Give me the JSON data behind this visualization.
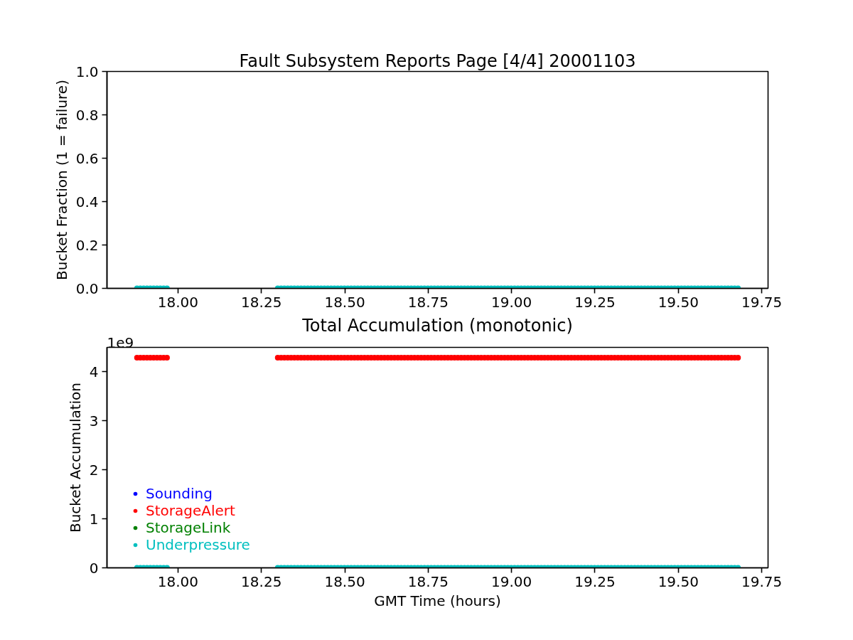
{
  "chart_data": [
    {
      "type": "scatter",
      "title": "Fault Subsystem Reports Page [4/4] 20001103",
      "ylabel": "Bucket Fraction (1 = failure)",
      "marker": "circle",
      "xlim": [
        17.787,
        19.769
      ],
      "xticks": [
        {
          "value": 18,
          "label": "18.00"
        },
        18.25,
        {
          "value": 18.5,
          "label": "18.50"
        },
        18.75,
        {
          "value": 19,
          "label": "19.00"
        },
        19.25,
        {
          "value": 19.5,
          "label": "19.50"
        },
        19.75
      ],
      "ylim": [
        0,
        1
      ],
      "yticks": [
        {
          "value": 0,
          "label": "0.0"
        },
        0.2,
        0.4,
        0.6,
        0.8,
        {
          "value": 1,
          "label": "1.0"
        }
      ],
      "x": [
        17.877,
        17.887,
        17.897,
        17.907,
        17.917,
        17.927,
        17.937,
        17.947,
        17.957,
        17.967,
        18.299,
        18.309,
        18.319,
        18.329,
        18.339,
        18.349,
        18.359,
        18.369,
        18.379,
        18.389,
        18.399,
        18.409,
        18.419,
        18.429,
        18.439,
        18.449,
        18.459,
        18.469,
        18.479,
        18.489,
        18.499,
        18.509,
        18.519,
        18.529,
        18.539,
        18.549,
        18.559,
        18.569,
        18.579,
        18.589,
        18.599,
        18.609,
        18.619,
        18.629,
        18.639,
        18.649,
        18.659,
        18.669,
        18.679,
        18.689,
        18.699,
        18.709,
        18.719,
        18.729,
        18.739,
        18.749,
        18.759,
        18.769,
        18.779,
        18.789,
        18.799,
        18.809,
        18.819,
        18.829,
        18.839,
        18.849,
        18.859,
        18.869,
        18.879,
        18.889,
        18.899,
        18.909,
        18.919,
        18.929,
        18.939,
        18.949,
        18.959,
        18.969,
        18.979,
        18.989,
        18.999,
        19.009,
        19.019,
        19.029,
        19.039,
        19.049,
        19.059,
        19.069,
        19.079,
        19.089,
        19.099,
        19.109,
        19.119,
        19.129,
        19.139,
        19.149,
        19.159,
        19.169,
        19.179,
        19.189,
        19.199,
        19.209,
        19.219,
        19.229,
        19.239,
        19.249,
        19.259,
        19.269,
        19.279,
        19.289,
        19.299,
        19.309,
        19.319,
        19.329,
        19.339,
        19.349,
        19.359,
        19.369,
        19.379,
        19.389,
        19.399,
        19.409,
        19.419,
        19.429,
        19.439,
        19.449,
        19.459,
        19.469,
        19.479,
        19.489,
        19.499,
        19.509,
        19.519,
        19.529,
        19.539,
        19.549,
        19.559,
        19.569,
        19.579,
        19.589,
        19.599,
        19.609,
        19.619,
        19.629,
        19.639,
        19.649,
        19.659,
        19.669,
        19.679
      ],
      "series": [
        {
          "color": "#00bfbf",
          "values": [
            0,
            0,
            0,
            0,
            0,
            0,
            0,
            0,
            0,
            0,
            0,
            0,
            0,
            0,
            0,
            0,
            0,
            0,
            0,
            0,
            0,
            0,
            0,
            0,
            0,
            0,
            0,
            0,
            0,
            0,
            0,
            0,
            0,
            0,
            0,
            0,
            0,
            0,
            0,
            0,
            0,
            0,
            0,
            0,
            0,
            0,
            0,
            0,
            0,
            0,
            0,
            0,
            0,
            0,
            0,
            0,
            0,
            0,
            0,
            0,
            0,
            0,
            0,
            0,
            0,
            0,
            0,
            0,
            0,
            0,
            0,
            0,
            0,
            0,
            0,
            0,
            0,
            0,
            0,
            0,
            0,
            0,
            0,
            0,
            0,
            0,
            0,
            0,
            0,
            0,
            0,
            0,
            0,
            0,
            0,
            0,
            0,
            0,
            0,
            0,
            0,
            0,
            0,
            0,
            0,
            0,
            0,
            0,
            0,
            0,
            0,
            0,
            0,
            0,
            0,
            0,
            0,
            0,
            0,
            0,
            0,
            0,
            0,
            0,
            0,
            0,
            0,
            0,
            0,
            0,
            0,
            0,
            0,
            0,
            0,
            0,
            0,
            0,
            0,
            0,
            0,
            0,
            0,
            0,
            0,
            0,
            0,
            0,
            0
          ]
        }
      ]
    },
    {
      "type": "scatter",
      "title": "Total Accumulation (monotonic)",
      "xlabel": "GMT Time (hours)",
      "ylabel": "Bucket Accumulation",
      "marker": "circle",
      "legend": "bottom left",
      "annotations": [
        "1e9"
      ],
      "xlim": [
        17.787,
        19.769
      ],
      "xticks": [
        {
          "value": 18,
          "label": "18.00"
        },
        18.25,
        {
          "value": 18.5,
          "label": "18.50"
        },
        18.75,
        {
          "value": 19,
          "label": "19.00"
        },
        19.25,
        {
          "value": 19.5,
          "label": "19.50"
        },
        19.75
      ],
      "ylim": [
        0,
        4.5
      ],
      "yticks": [
        0,
        1,
        2,
        3,
        4
      ],
      "x": [
        17.877,
        17.887,
        17.897,
        17.907,
        17.917,
        17.927,
        17.937,
        17.947,
        17.957,
        17.967,
        18.299,
        18.309,
        18.319,
        18.329,
        18.339,
        18.349,
        18.359,
        18.369,
        18.379,
        18.389,
        18.399,
        18.409,
        18.419,
        18.429,
        18.439,
        18.449,
        18.459,
        18.469,
        18.479,
        18.489,
        18.499,
        18.509,
        18.519,
        18.529,
        18.539,
        18.549,
        18.559,
        18.569,
        18.579,
        18.589,
        18.599,
        18.609,
        18.619,
        18.629,
        18.639,
        18.649,
        18.659,
        18.669,
        18.679,
        18.689,
        18.699,
        18.709,
        18.719,
        18.729,
        18.739,
        18.749,
        18.759,
        18.769,
        18.779,
        18.789,
        18.799,
        18.809,
        18.819,
        18.829,
        18.839,
        18.849,
        18.859,
        18.869,
        18.879,
        18.889,
        18.899,
        18.909,
        18.919,
        18.929,
        18.939,
        18.949,
        18.959,
        18.969,
        18.979,
        18.989,
        18.999,
        19.009,
        19.019,
        19.029,
        19.039,
        19.049,
        19.059,
        19.069,
        19.079,
        19.089,
        19.099,
        19.109,
        19.119,
        19.129,
        19.139,
        19.149,
        19.159,
        19.169,
        19.179,
        19.189,
        19.199,
        19.209,
        19.219,
        19.229,
        19.239,
        19.249,
        19.259,
        19.269,
        19.279,
        19.289,
        19.299,
        19.309,
        19.319,
        19.329,
        19.339,
        19.349,
        19.359,
        19.369,
        19.379,
        19.389,
        19.399,
        19.409,
        19.419,
        19.429,
        19.439,
        19.449,
        19.459,
        19.469,
        19.479,
        19.489,
        19.499,
        19.509,
        19.519,
        19.529,
        19.539,
        19.549,
        19.559,
        19.569,
        19.579,
        19.589,
        19.599,
        19.609,
        19.619,
        19.629,
        19.639,
        19.649,
        19.659,
        19.669,
        19.679
      ],
      "series": [
        {
          "name": "Sounding",
          "color": "#0000ff",
          "values": [
            null,
            null,
            null,
            null,
            null,
            null,
            null,
            null,
            null,
            null,
            null,
            null,
            null,
            null,
            null,
            null,
            null,
            null,
            null,
            null,
            null,
            null,
            null,
            null,
            null,
            null,
            null,
            null,
            null,
            null,
            null,
            null,
            null,
            null,
            null,
            null,
            null,
            null,
            null,
            null,
            null,
            null,
            null,
            null,
            null,
            null,
            null,
            null,
            null,
            null,
            null,
            null,
            null,
            null,
            null,
            null,
            null,
            null,
            null,
            null,
            null,
            null,
            null,
            null,
            null,
            null,
            null,
            null,
            null,
            null,
            null,
            null,
            null,
            null,
            null,
            null,
            null,
            null,
            null,
            null,
            null,
            null,
            null,
            null,
            null,
            null,
            null,
            null,
            null,
            null,
            null,
            null,
            null,
            null,
            null,
            null,
            null,
            null,
            null,
            null,
            null,
            null,
            null,
            null,
            null,
            null,
            null,
            null,
            null,
            null,
            null,
            null,
            null,
            null,
            null,
            null,
            null,
            null,
            null,
            null,
            null,
            null,
            null,
            null,
            null,
            null,
            null,
            null,
            null,
            null,
            null,
            null,
            null,
            null,
            null,
            null,
            null,
            null,
            null,
            null,
            null,
            null,
            null,
            null,
            null,
            null,
            null,
            null,
            null
          ]
        },
        {
          "name": "StorageAlert",
          "color": "#ff0000",
          "values": [
            4.29,
            4.29,
            4.29,
            4.29,
            4.29,
            4.29,
            4.29,
            4.29,
            4.29,
            4.29,
            4.29,
            4.29,
            4.29,
            4.29,
            4.29,
            4.29,
            4.29,
            4.29,
            4.29,
            4.29,
            4.29,
            4.29,
            4.29,
            4.29,
            4.29,
            4.29,
            4.29,
            4.29,
            4.29,
            4.29,
            4.29,
            4.29,
            4.29,
            4.29,
            4.29,
            4.29,
            4.29,
            4.29,
            4.29,
            4.29,
            4.29,
            4.29,
            4.29,
            4.29,
            4.29,
            4.29,
            4.29,
            4.29,
            4.29,
            4.29,
            4.29,
            4.29,
            4.29,
            4.29,
            4.29,
            4.29,
            4.29,
            4.29,
            4.29,
            4.29,
            4.29,
            4.29,
            4.29,
            4.29,
            4.29,
            4.29,
            4.29,
            4.29,
            4.29,
            4.29,
            4.29,
            4.29,
            4.29,
            4.29,
            4.29,
            4.29,
            4.29,
            4.29,
            4.29,
            4.29,
            4.29,
            4.29,
            4.29,
            4.29,
            4.29,
            4.29,
            4.29,
            4.29,
            4.29,
            4.29,
            4.29,
            4.29,
            4.29,
            4.29,
            4.29,
            4.29,
            4.29,
            4.29,
            4.29,
            4.29,
            4.29,
            4.29,
            4.29,
            4.29,
            4.29,
            4.29,
            4.29,
            4.29,
            4.29,
            4.29,
            4.29,
            4.29,
            4.29,
            4.29,
            4.29,
            4.29,
            4.29,
            4.29,
            4.29,
            4.29,
            4.29,
            4.29,
            4.29,
            4.29,
            4.29,
            4.29,
            4.29,
            4.29,
            4.29,
            4.29,
            4.29,
            4.29,
            4.29,
            4.29,
            4.29,
            4.29,
            4.29,
            4.29,
            4.29,
            4.29,
            4.29,
            4.29,
            4.29,
            4.29,
            4.29,
            4.29,
            4.29,
            4.29,
            4.29
          ]
        },
        {
          "name": "StorageLink",
          "color": "#008000",
          "values": [
            null,
            null,
            null,
            null,
            null,
            null,
            null,
            null,
            null,
            null,
            null,
            null,
            null,
            null,
            null,
            null,
            null,
            null,
            null,
            null,
            null,
            null,
            null,
            null,
            null,
            null,
            null,
            null,
            null,
            null,
            null,
            null,
            null,
            null,
            null,
            null,
            null,
            null,
            null,
            null,
            null,
            null,
            null,
            null,
            null,
            null,
            null,
            null,
            null,
            null,
            null,
            null,
            null,
            null,
            null,
            null,
            null,
            null,
            null,
            null,
            null,
            null,
            null,
            null,
            null,
            null,
            null,
            null,
            null,
            null,
            null,
            null,
            null,
            null,
            null,
            null,
            null,
            null,
            null,
            null,
            null,
            null,
            null,
            null,
            null,
            null,
            null,
            null,
            null,
            null,
            null,
            null,
            null,
            null,
            null,
            null,
            null,
            null,
            null,
            null,
            null,
            null,
            null,
            null,
            null,
            null,
            null,
            null,
            null,
            null,
            null,
            null,
            null,
            null,
            null,
            null,
            null,
            null,
            null,
            null,
            null,
            null,
            null,
            null,
            null,
            null,
            null,
            null,
            null,
            null,
            null,
            null,
            null,
            null,
            null,
            null,
            null,
            null,
            null,
            null,
            null,
            null,
            null,
            null,
            null,
            null,
            null,
            null,
            null
          ]
        },
        {
          "name": "Underpressure",
          "color": "#00bfbf",
          "values": [
            0,
            0,
            0,
            0,
            0,
            0,
            0,
            0,
            0,
            0,
            0,
            0,
            0,
            0,
            0,
            0,
            0,
            0,
            0,
            0,
            0,
            0,
            0,
            0,
            0,
            0,
            0,
            0,
            0,
            0,
            0,
            0,
            0,
            0,
            0,
            0,
            0,
            0,
            0,
            0,
            0,
            0,
            0,
            0,
            0,
            0,
            0,
            0,
            0,
            0,
            0,
            0,
            0,
            0,
            0,
            0,
            0,
            0,
            0,
            0,
            0,
            0,
            0,
            0,
            0,
            0,
            0,
            0,
            0,
            0,
            0,
            0,
            0,
            0,
            0,
            0,
            0,
            0,
            0,
            0,
            0,
            0,
            0,
            0,
            0,
            0,
            0,
            0,
            0,
            0,
            0,
            0,
            0,
            0,
            0,
            0,
            0,
            0,
            0,
            0,
            0,
            0,
            0,
            0,
            0,
            0,
            0,
            0,
            0,
            0,
            0,
            0,
            0,
            0,
            0,
            0,
            0,
            0,
            0,
            0,
            0,
            0,
            0,
            0,
            0,
            0,
            0,
            0,
            0,
            0,
            0,
            0,
            0,
            0,
            0,
            0,
            0,
            0,
            0,
            0,
            0,
            0,
            0,
            0,
            0,
            0,
            0,
            0,
            0
          ]
        }
      ]
    }
  ]
}
